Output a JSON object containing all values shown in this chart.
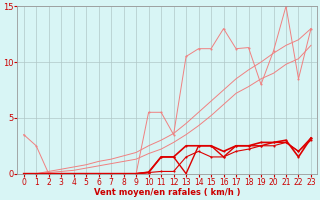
{
  "x": [
    0,
    1,
    2,
    3,
    4,
    5,
    6,
    7,
    8,
    9,
    10,
    11,
    12,
    13,
    14,
    15,
    16,
    17,
    18,
    19,
    20,
    21,
    22,
    23
  ],
  "line_salmon_jagged": [
    3.5,
    2.5,
    0.0,
    0.0,
    0.0,
    0.0,
    0.0,
    0.0,
    0.0,
    0.0,
    5.5,
    5.5,
    3.5,
    10.5,
    11.2,
    11.2,
    13.0,
    11.2,
    11.3,
    8.0,
    11.0,
    15.0,
    8.5,
    13.0
  ],
  "line_salmon_linear1": [
    0.0,
    0.0,
    0.2,
    0.4,
    0.6,
    0.8,
    1.1,
    1.3,
    1.6,
    1.9,
    2.5,
    3.0,
    3.6,
    4.5,
    5.5,
    6.5,
    7.5,
    8.5,
    9.3,
    10.0,
    10.8,
    11.5,
    12.0,
    13.0
  ],
  "line_salmon_linear2": [
    0.0,
    0.0,
    0.1,
    0.2,
    0.3,
    0.5,
    0.7,
    0.9,
    1.1,
    1.3,
    1.8,
    2.2,
    2.8,
    3.5,
    4.3,
    5.2,
    6.2,
    7.2,
    7.8,
    8.5,
    9.0,
    9.8,
    10.3,
    11.5
  ],
  "line_dark1": [
    0.0,
    0.0,
    0.0,
    0.0,
    0.0,
    0.0,
    0.0,
    0.0,
    0.0,
    0.0,
    0.15,
    1.5,
    1.5,
    0.0,
    2.5,
    2.5,
    1.5,
    2.5,
    2.5,
    2.5,
    2.8,
    2.8,
    2.0,
    3.2
  ],
  "line_dark2": [
    0.0,
    0.0,
    0.0,
    0.0,
    0.0,
    0.0,
    0.0,
    0.0,
    0.0,
    0.0,
    0.1,
    1.5,
    1.5,
    2.5,
    2.5,
    2.5,
    2.0,
    2.5,
    2.5,
    2.8,
    2.8,
    3.0,
    1.5,
    3.2
  ],
  "line_dark3": [
    0.0,
    0.0,
    0.0,
    0.0,
    0.0,
    0.0,
    0.0,
    0.0,
    0.0,
    0.0,
    0.1,
    0.2,
    0.2,
    1.5,
    2.0,
    1.5,
    1.5,
    2.0,
    2.2,
    2.5,
    2.5,
    2.8,
    2.0,
    3.0
  ],
  "background_color": "#d8f5f5",
  "grid_color": "#b0c8c8",
  "line_color_dark": "#dd0000",
  "line_color_salmon": "#f08080",
  "ylim": [
    0,
    15
  ],
  "xlim_min": -0.5,
  "xlim_max": 23.5,
  "ylabel_ticks": [
    0,
    5,
    10,
    15
  ],
  "xlabel": "Vent moyen/en rafales ( km/h )",
  "xlabel_color": "#cc0000",
  "tick_color": "#cc0000",
  "label_fontsize": 5.5,
  "ytick_fontsize": 6
}
